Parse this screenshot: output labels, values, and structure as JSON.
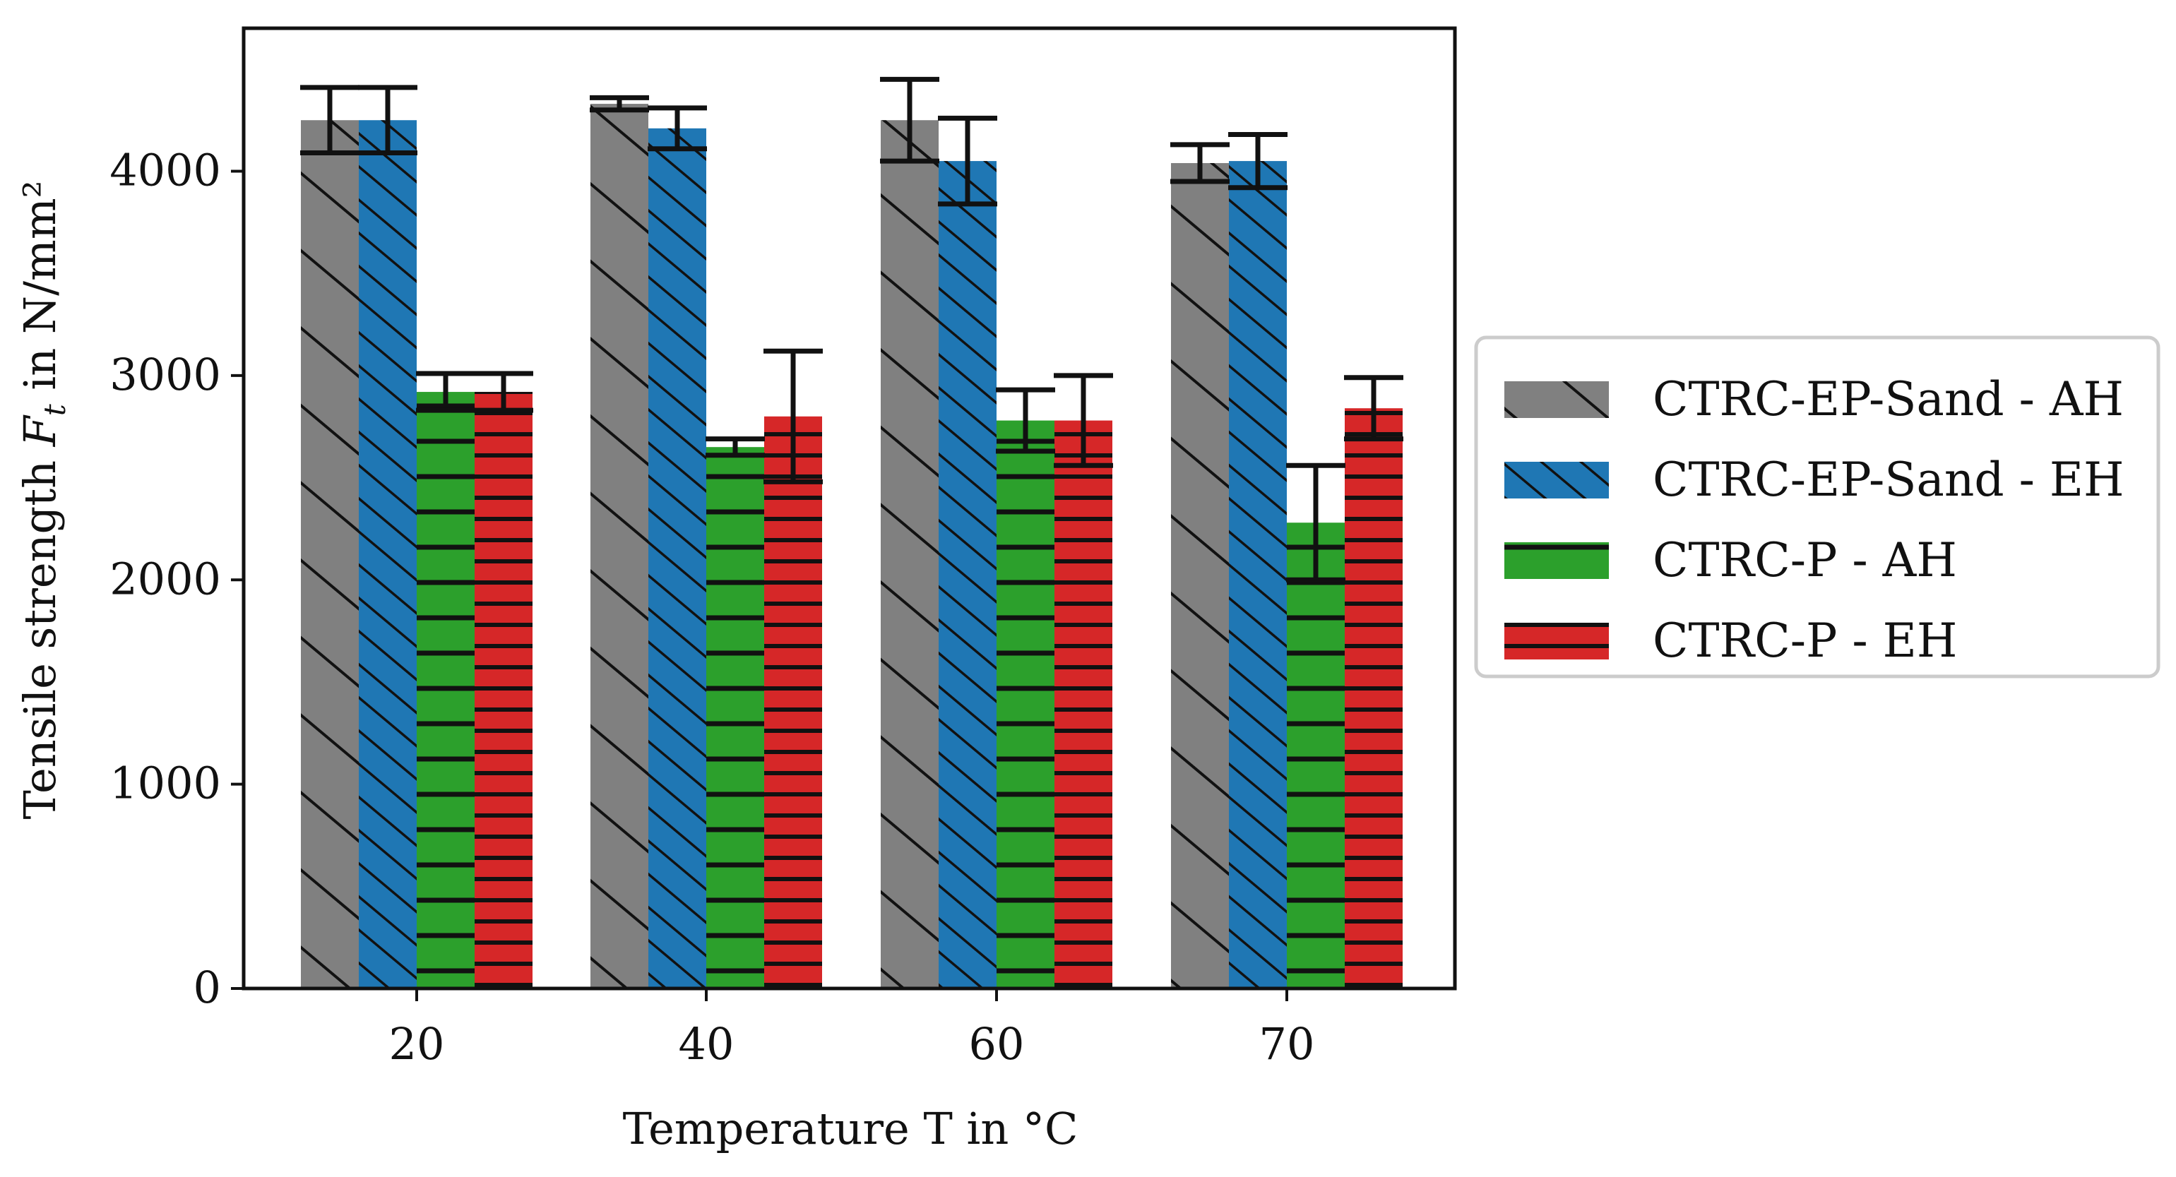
{
  "chart_data": {
    "type": "bar",
    "title": "",
    "xlabel": "Temperature T in °C",
    "ylabel_prefix": "Tensile strength ",
    "ylabel_symbol": "F",
    "ylabel_subscript": "t",
    "ylabel_suffix": " in N/mm²",
    "categories": [
      "20",
      "40",
      "60",
      "70"
    ],
    "ylim": [
      0,
      4700
    ],
    "yticks": [
      0,
      1000,
      2000,
      3000,
      4000
    ],
    "ytick_labels": [
      "0",
      "1000",
      "2000",
      "3000",
      "4000"
    ],
    "legend_position": "outside-right",
    "series": [
      {
        "name": "CTRC-EP-Sand - AH",
        "color": "#808080",
        "hatch": "diag-sparse",
        "values": [
          4250,
          4330,
          4250,
          4040
        ],
        "errors": [
          160,
          30,
          200,
          90
        ]
      },
      {
        "name": "CTRC-EP-Sand - EH",
        "color": "#1f77b4",
        "hatch": "diag-dense",
        "values": [
          4250,
          4210,
          4050,
          4050
        ],
        "errors": [
          160,
          100,
          210,
          130
        ]
      },
      {
        "name": "CTRC-P - AH",
        "color": "#2ca02c",
        "hatch": "horizontal",
        "values": [
          2920,
          2650,
          2780,
          2280
        ],
        "errors": [
          90,
          40,
          150,
          280
        ]
      },
      {
        "name": "CTRC-P - EH",
        "color": "#d62728",
        "hatch": "horizontal-dense",
        "values": [
          2920,
          2800,
          2780,
          2840
        ],
        "errors": [
          90,
          320,
          220,
          150
        ]
      }
    ]
  }
}
